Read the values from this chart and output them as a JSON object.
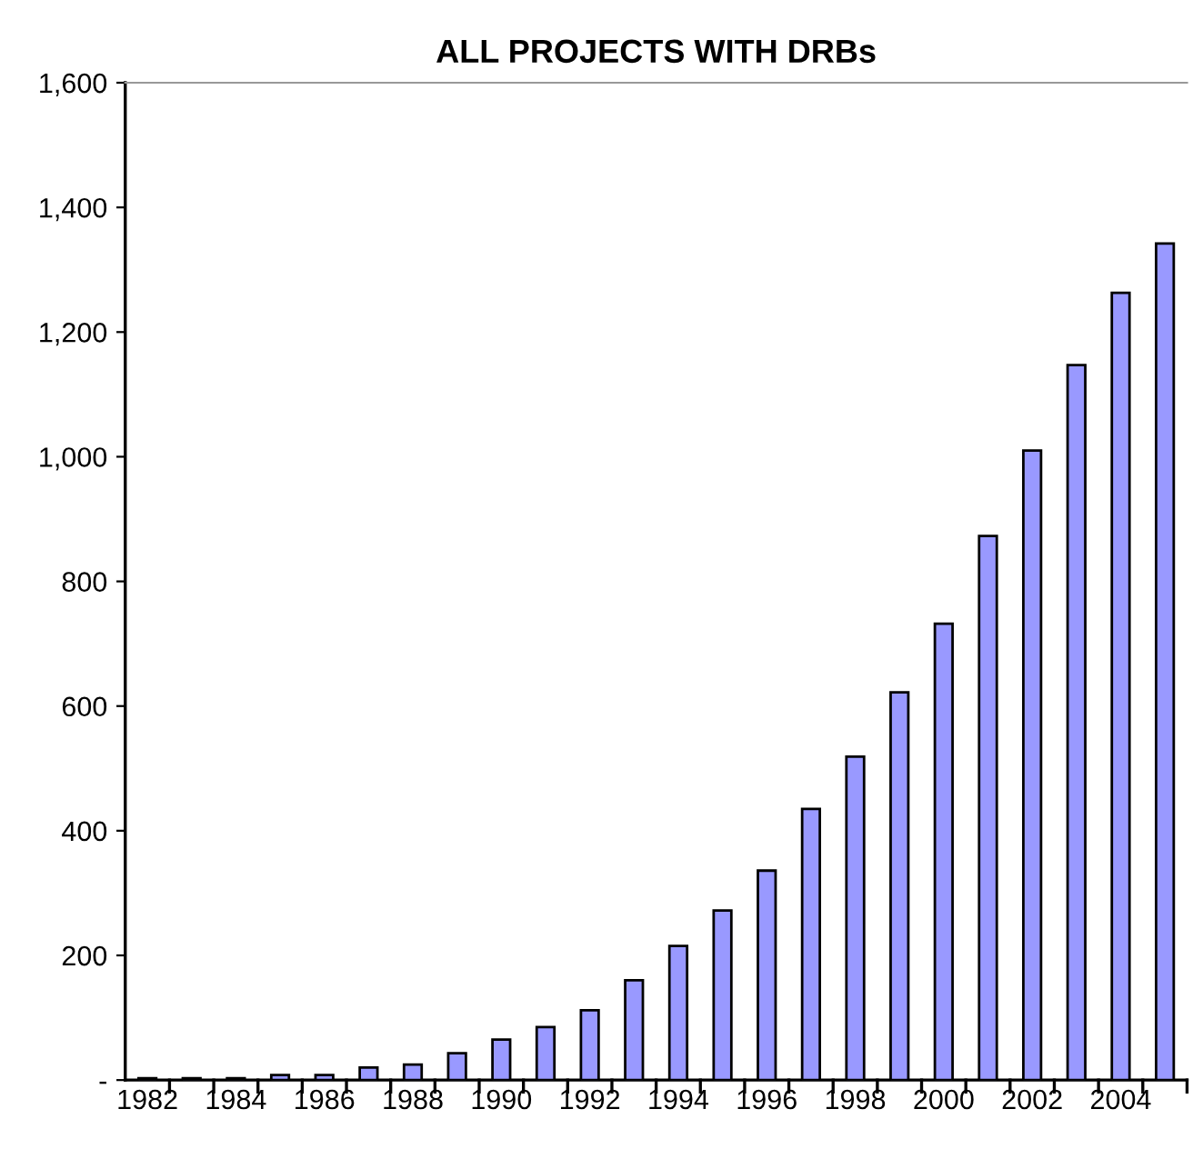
{
  "chart_data": {
    "type": "bar",
    "title": "ALL PROJECTS WITH DRBs",
    "categories": [
      "1982",
      null,
      "1984",
      null,
      "1986",
      null,
      "1988",
      null,
      "1990",
      null,
      "1992",
      null,
      "1994",
      null,
      "1996",
      null,
      "1998",
      null,
      "2000",
      null,
      "2002",
      null,
      "2004",
      null
    ],
    "values": [
      3,
      3,
      3,
      8,
      8,
      20,
      25,
      43,
      65,
      85,
      112,
      160,
      215,
      272,
      336,
      435,
      519,
      622,
      732,
      873,
      1010,
      1147,
      1263,
      1342
    ],
    "color": "#9999ff",
    "ylim": [
      0,
      1600
    ],
    "yticks": [
      {
        "value": 0,
        "label": "-"
      },
      200,
      400,
      600,
      800,
      {
        "value": 1000,
        "label": "1,000"
      },
      {
        "value": 1200,
        "label": "1,200"
      },
      {
        "value": 1400,
        "label": "1,400"
      },
      {
        "value": 1600,
        "label": "1,600"
      }
    ],
    "grid": false
  }
}
